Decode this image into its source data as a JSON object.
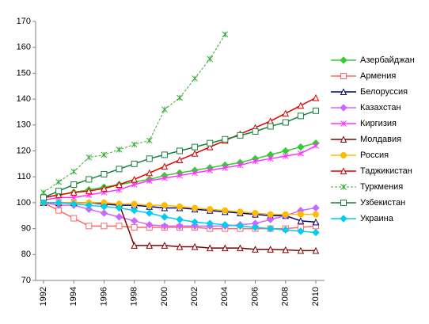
{
  "chart_data": {
    "type": "line",
    "x": [
      1992,
      1993,
      1994,
      1995,
      1996,
      1997,
      1998,
      1999,
      2000,
      2001,
      2002,
      2003,
      2004,
      2005,
      2006,
      2007,
      2008,
      2009,
      2010
    ],
    "xlim": [
      1992,
      2010
    ],
    "xticks": [
      1992,
      1994,
      1996,
      1998,
      2000,
      2002,
      2004,
      2006,
      2008,
      2010
    ],
    "ylim": [
      70,
      170
    ],
    "yticks": [
      70,
      80,
      90,
      100,
      110,
      120,
      130,
      140,
      150,
      160,
      170
    ],
    "series": [
      {
        "name": "Азербайджан",
        "color": "#33cc33",
        "marker": "diamond",
        "values": [
          102,
          103,
          104,
          105,
          106,
          107,
          108,
          109,
          110.5,
          111.5,
          112.5,
          113.5,
          114.5,
          115.5,
          117,
          118.5,
          120,
          121.5,
          123
        ]
      },
      {
        "name": "Армения",
        "color": "#ff6666",
        "marker": "square",
        "values": [
          100,
          97,
          94,
          91,
          91,
          91,
          90.5,
          90.5,
          90.5,
          90.5,
          90.5,
          90,
          90,
          90,
          90,
          90,
          90,
          90.5,
          91
        ]
      },
      {
        "name": "Белоруссия",
        "color": "#000080",
        "marker": "triangle",
        "values": [
          100,
          100,
          100,
          100,
          99.5,
          99,
          99,
          98.5,
          98,
          98,
          97.5,
          97,
          96.5,
          96,
          95.5,
          95,
          95,
          93,
          92.5
        ]
      },
      {
        "name": "Казахстан",
        "color": "#cc66ff",
        "marker": "diamond",
        "values": [
          100,
          99,
          99,
          97.5,
          96,
          94.5,
          93,
          91.5,
          91,
          91,
          91,
          91,
          91,
          91.5,
          92,
          93.5,
          95,
          97,
          98
        ]
      },
      {
        "name": "Киргизия",
        "color": "#ff33ff",
        "marker": "star",
        "values": [
          101,
          102,
          102,
          103,
          104,
          105,
          107,
          108.5,
          109.5,
          110.5,
          111.5,
          112.5,
          113.5,
          114.5,
          116,
          117,
          118,
          119,
          122
        ]
      },
      {
        "name": "Молдавия",
        "color": "#800000",
        "marker": "triangle",
        "values": [
          100,
          100,
          100,
          100,
          100,
          99.5,
          83.5,
          83.5,
          83.5,
          83,
          83,
          82.5,
          82.5,
          82.5,
          82,
          82,
          81.8,
          81.5,
          81.5
        ]
      },
      {
        "name": "Россия",
        "color": "#ffbb00",
        "marker": "circle",
        "values": [
          100,
          100,
          100,
          100,
          100,
          99.5,
          99.5,
          99,
          99,
          98.5,
          98,
          97.5,
          97,
          96.5,
          96,
          95.5,
          95.5,
          95.5,
          95.5
        ]
      },
      {
        "name": "Таджикистан",
        "color": "#dd0000",
        "marker": "triangle",
        "values": [
          102,
          103,
          104,
          104.5,
          105.5,
          107,
          109,
          111.5,
          114,
          116.5,
          119,
          121.5,
          124,
          126.5,
          129,
          131.5,
          134.5,
          137.5,
          140.5
        ]
      },
      {
        "name": "Туркмения",
        "color": "#33aa33",
        "marker": "star",
        "dash": true,
        "values": [
          104,
          108,
          112,
          117.5,
          118.5,
          120.5,
          122.5,
          124,
          136,
          140.5,
          148,
          155.5,
          165,
          null,
          null,
          null,
          null,
          null,
          null
        ]
      },
      {
        "name": "Узбекистан",
        "color": "#1a8040",
        "marker": "square",
        "values": [
          102,
          104.5,
          107,
          109,
          111,
          113,
          115,
          117,
          118.5,
          120,
          121.5,
          123,
          124.5,
          126,
          127.5,
          129.5,
          131,
          133.5,
          135.5
        ]
      },
      {
        "name": "Украина",
        "color": "#00ccee",
        "marker": "diamond",
        "values": [
          100,
          100,
          99.5,
          99,
          98.5,
          98,
          97,
          96,
          94.5,
          93.5,
          92.5,
          92,
          91.5,
          91,
          90.5,
          90,
          89.5,
          89,
          88.5
        ]
      }
    ]
  }
}
